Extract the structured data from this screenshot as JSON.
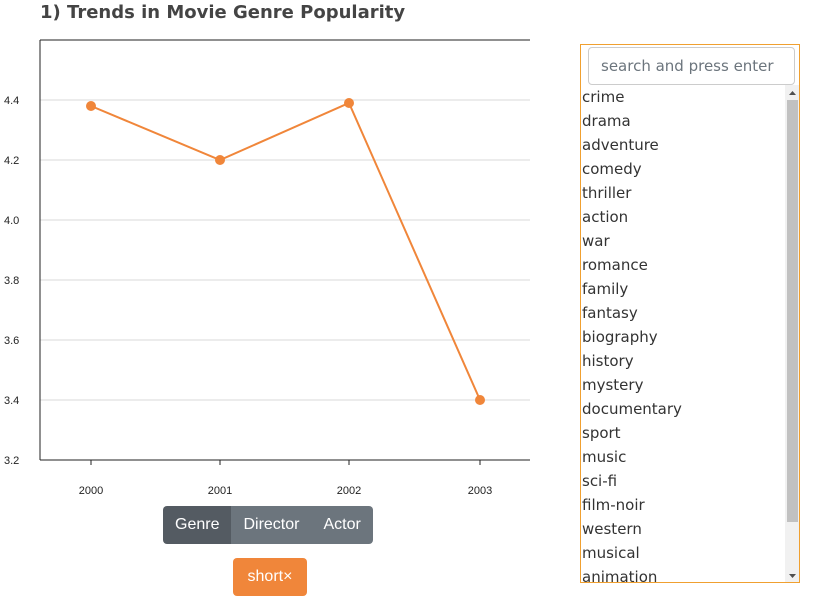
{
  "page": {
    "title": "1) Trends in Movie Genre Popularity"
  },
  "chart_data": {
    "type": "line",
    "title": "",
    "xlabel": "",
    "ylabel": "",
    "categories": [
      "2000",
      "2001",
      "2002",
      "2003"
    ],
    "series": [
      {
        "values": [
          4.38,
          4.2,
          4.39,
          3.4
        ],
        "color": "#f0863a"
      }
    ],
    "ylim": [
      3.2,
      4.6
    ],
    "yticks": [
      "3.2",
      "3.4",
      "3.6",
      "3.8",
      "4.0",
      "4.2",
      "4.4"
    ],
    "grid": "horizontal"
  },
  "controls": {
    "tabs": [
      {
        "label": "Genre",
        "active": true
      },
      {
        "label": "Director",
        "active": false
      },
      {
        "label": "Actor",
        "active": false
      }
    ],
    "tag_label": "short×"
  },
  "sidebar": {
    "search_placeholder": "search and press enter",
    "items": [
      "crime",
      "drama",
      "adventure",
      "comedy",
      "thriller",
      "action",
      "war",
      "romance",
      "family",
      "fantasy",
      "biography",
      "history",
      "mystery",
      "documentary",
      "sport",
      "music",
      "sci-fi",
      "film-noir",
      "western",
      "musical",
      "animation"
    ]
  },
  "colors": {
    "accent": "#f0863a",
    "panel_border": "#f0a030",
    "tab_active": "#545b62",
    "tab": "#6c757d"
  }
}
